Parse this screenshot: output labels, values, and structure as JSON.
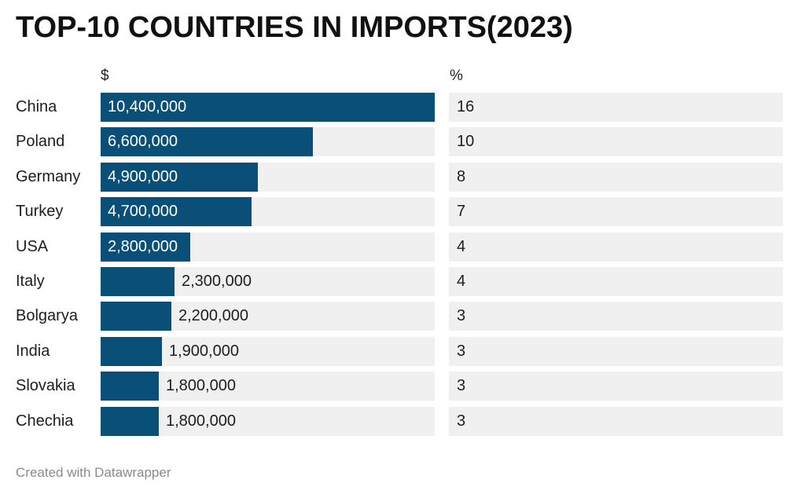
{
  "title": "TOP-10 COUNTRIES IN IMPORTS(2023)",
  "columns": {
    "value_header": "$",
    "percent_header": "%"
  },
  "footer": "Created with Datawrapper",
  "colors": {
    "bar": "#0a4f78",
    "track": "#f0f0f0"
  },
  "chart_data": {
    "type": "bar",
    "orientation": "horizontal",
    "title": "TOP-10 COUNTRIES IN IMPORTS(2023)",
    "categories": [
      "China",
      "Poland",
      "Germany",
      "Turkey",
      "USA",
      "Italy",
      "Bolgarya",
      "India",
      "Slovakia",
      "Chechia"
    ],
    "values": [
      10400000,
      6600000,
      4900000,
      4700000,
      2800000,
      2300000,
      2200000,
      1900000,
      1800000,
      1800000
    ],
    "value_labels": [
      "10,400,000",
      "6,600,000",
      "4,900,000",
      "4,700,000",
      "2,800,000",
      "2,300,000",
      "2,200,000",
      "1,900,000",
      "1,800,000",
      "1,800,000"
    ],
    "percent": [
      16,
      10,
      8,
      7,
      4,
      4,
      3,
      3,
      3,
      3
    ],
    "xlim": [
      0,
      10400000
    ]
  }
}
